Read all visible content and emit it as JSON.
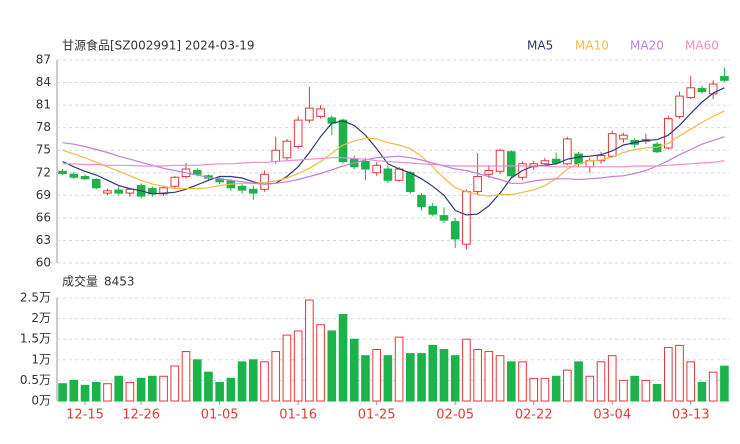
{
  "chart_data": {
    "type": "candlestick",
    "title": "甘源食品[SZ002991] 2024-03-19",
    "categories": [
      null,
      null,
      "12-15",
      null,
      null,
      null,
      null,
      "12-26",
      null,
      null,
      null,
      null,
      null,
      null,
      "01-05",
      null,
      null,
      null,
      null,
      null,
      null,
      "01-16",
      null,
      null,
      null,
      null,
      null,
      null,
      "01-25",
      null,
      null,
      null,
      null,
      null,
      null,
      "02-05",
      null,
      null,
      null,
      null,
      null,
      null,
      "02-22",
      null,
      null,
      null,
      null,
      null,
      null,
      "03-04",
      null,
      null,
      null,
      null,
      null,
      null,
      "03-13",
      null,
      null,
      null
    ],
    "open": [
      72.2,
      71.8,
      71.5,
      71.1,
      69.3,
      69.7,
      69.3,
      70.3,
      69.9,
      69.2,
      70.2,
      71.5,
      72.3,
      71.6,
      71.2,
      70.9,
      70.2,
      69.8,
      69.8,
      73.5,
      74.0,
      75.5,
      79.0,
      79.5,
      79.3,
      79.0,
      73.8,
      73.5,
      72.0,
      72.5,
      71.0,
      72.0,
      69.0,
      67.5,
      66.3,
      65.5,
      62.5,
      69.5,
      71.8,
      72.2,
      74.8,
      71.4,
      72.8,
      73.2,
      73.8,
      73.2,
      74.5,
      72.8,
      73.6,
      74.2,
      76.5,
      76.3,
      76.2,
      75.8,
      75.3,
      79.5,
      82.0,
      83.2,
      82.5,
      84.8
    ],
    "high": [
      72.5,
      72.1,
      71.8,
      71.3,
      69.9,
      70.2,
      70.0,
      70.6,
      70.2,
      70.3,
      71.6,
      73.3,
      72.6,
      71.8,
      71.5,
      71.2,
      70.5,
      70.3,
      72.3,
      76.8,
      76.5,
      79.5,
      83.4,
      81.0,
      79.6,
      79.2,
      74.3,
      74.0,
      73.4,
      73.0,
      72.8,
      72.2,
      69.3,
      68.0,
      67.4,
      66.0,
      69.8,
      74.6,
      73.0,
      75.2,
      75.0,
      73.5,
      73.6,
      74.0,
      74.7,
      76.8,
      74.8,
      74.0,
      74.8,
      77.6,
      77.3,
      76.6,
      77.2,
      76.1,
      79.6,
      82.8,
      84.9,
      83.6,
      84.3,
      86.0
    ],
    "low": [
      71.7,
      71.2,
      71.0,
      69.8,
      69.0,
      69.0,
      68.8,
      68.6,
      68.8,
      68.9,
      69.9,
      71.2,
      71.5,
      71.0,
      70.5,
      69.6,
      69.2,
      68.4,
      69.5,
      73.2,
      73.6,
      75.2,
      78.6,
      79.2,
      77.0,
      73.2,
      72.5,
      71.0,
      71.6,
      70.6,
      70.8,
      69.2,
      67.0,
      66.2,
      65.3,
      62.0,
      61.8,
      69.2,
      71.3,
      71.8,
      71.3,
      71.0,
      72.4,
      72.9,
      73.0,
      73.0,
      72.8,
      72.0,
      73.2,
      74.0,
      76.0,
      75.3,
      75.8,
      74.6,
      75.1,
      79.2,
      81.8,
      82.5,
      81.8,
      84.1
    ],
    "close": [
      71.9,
      71.4,
      71.2,
      70.0,
      69.6,
      69.3,
      69.8,
      68.9,
      69.2,
      70.0,
      71.4,
      72.5,
      71.8,
      71.3,
      70.8,
      70.0,
      69.7,
      69.3,
      71.8,
      75.0,
      76.2,
      79.0,
      80.6,
      80.5,
      78.6,
      73.5,
      72.8,
      72.5,
      73.0,
      71.0,
      72.5,
      69.5,
      67.5,
      66.5,
      65.7,
      63.2,
      69.5,
      71.5,
      72.3,
      75.0,
      71.6,
      73.2,
      73.2,
      73.6,
      73.3,
      76.5,
      73.2,
      73.6,
      74.3,
      77.2,
      77.0,
      75.8,
      76.4,
      74.8,
      79.2,
      82.2,
      83.3,
      82.8,
      83.8,
      84.3
    ],
    "up_color": "#e8343c",
    "down_color": "#1db24a",
    "series": [
      {
        "name": "MA5",
        "color": "#2e3a6e",
        "values": [
          73.5,
          72.8,
          72.2,
          71.7,
          71.0,
          70.3,
          69.9,
          69.6,
          69.2,
          69.3,
          69.4,
          69.8,
          70.4,
          71.0,
          71.5,
          71.5,
          71.3,
          70.8,
          70.5,
          70.6,
          71.5,
          72.8,
          74.7,
          76.8,
          78.6,
          78.9,
          78.3,
          77.0,
          75.2,
          73.2,
          72.5,
          72.0,
          71.2,
          70.2,
          69.0,
          67.0,
          66.4,
          66.5,
          67.6,
          69.3,
          71.3,
          72.3,
          72.9,
          73.0,
          73.2,
          73.8,
          74.1,
          74.2,
          74.4,
          74.9,
          75.7,
          76.0,
          76.3,
          76.4,
          77.0,
          78.3,
          79.9,
          81.4,
          82.6,
          83.3
        ]
      },
      {
        "name": "MA10",
        "color": "#f5b94a",
        "values": [
          75.0,
          74.5,
          74.0,
          73.4,
          72.8,
          72.2,
          71.6,
          71.0,
          70.5,
          70.2,
          69.9,
          69.9,
          69.9,
          70.0,
          70.3,
          70.5,
          70.6,
          70.6,
          70.7,
          70.9,
          71.3,
          71.9,
          72.6,
          73.5,
          74.6,
          75.7,
          76.2,
          76.6,
          76.5,
          76.0,
          75.7,
          75.2,
          74.2,
          72.8,
          71.3,
          70.0,
          69.5,
          69.1,
          68.9,
          69.1,
          69.1,
          69.4,
          69.7,
          70.3,
          71.2,
          72.5,
          73.2,
          73.6,
          73.7,
          74.1,
          74.7,
          75.1,
          75.3,
          75.4,
          75.9,
          76.9,
          77.8,
          78.7,
          79.5,
          80.2
        ]
      },
      {
        "name": "MA20",
        "color": "#bf7fe0",
        "values": [
          76.0,
          75.8,
          75.5,
          75.1,
          74.7,
          74.2,
          73.8,
          73.4,
          73.0,
          72.6,
          72.3,
          72.0,
          71.7,
          71.4,
          71.2,
          71.0,
          70.8,
          70.6,
          70.5,
          70.6,
          70.8,
          71.1,
          71.5,
          71.9,
          72.4,
          72.9,
          73.3,
          73.7,
          74.0,
          74.1,
          74.2,
          74.0,
          73.7,
          73.3,
          72.9,
          72.5,
          72.3,
          71.9,
          71.5,
          71.1,
          70.6,
          70.6,
          70.9,
          71.1,
          71.2,
          71.2,
          71.1,
          71.2,
          71.3,
          71.5,
          71.6,
          71.9,
          72.3,
          72.9,
          73.6,
          74.4,
          75.1,
          75.8,
          76.3,
          76.8
        ]
      },
      {
        "name": "MA60",
        "color": "#f08ccc",
        "values": [
          73.2,
          73.2,
          73.1,
          73.1,
          73.0,
          73.0,
          73.0,
          72.9,
          72.9,
          72.9,
          73.0,
          73.0,
          73.0,
          73.1,
          73.2,
          73.2,
          73.3,
          73.4,
          73.4,
          73.5,
          73.6,
          73.7,
          73.8,
          73.9,
          74.0,
          74.0,
          73.9,
          73.8,
          73.6,
          73.5,
          73.4,
          73.3,
          73.2,
          73.1,
          73.0,
          72.9,
          72.9,
          72.9,
          72.9,
          72.9,
          72.9,
          72.9,
          72.9,
          72.9,
          72.8,
          72.8,
          72.8,
          72.8,
          72.8,
          72.8,
          72.8,
          72.9,
          72.9,
          72.9,
          73.0,
          73.1,
          73.2,
          73.3,
          73.4,
          73.6
        ]
      }
    ],
    "ylim": [
      60,
      87
    ],
    "yticks": [
      60,
      63,
      66,
      69,
      72,
      75,
      78,
      81,
      84,
      87
    ],
    "grid": true,
    "volume": {
      "label": "成交量",
      "values": [
        4200,
        5000,
        3800,
        4500,
        4200,
        6000,
        4500,
        5500,
        6000,
        6000,
        8500,
        12000,
        10000,
        7000,
        4500,
        5500,
        9500,
        10000,
        9500,
        12000,
        16000,
        17000,
        24500,
        18500,
        17000,
        21000,
        15000,
        11000,
        12500,
        11000,
        15500,
        11500,
        11500,
        13500,
        12500,
        11000,
        15000,
        12500,
        12000,
        11000,
        9500,
        9500,
        5500,
        5500,
        6000,
        7500,
        9500,
        6000,
        9500,
        11000,
        5000,
        6000,
        5000,
        4000,
        13000,
        13500,
        9500,
        4500,
        7000,
        8453
      ],
      "ylim": [
        0,
        25000
      ],
      "yticks": [
        {
          "value": 0,
          "label": "0万"
        },
        {
          "value": 5000,
          "label": "0.5万"
        },
        {
          "value": 10000,
          "label": "1万"
        },
        {
          "value": 15000,
          "label": "1.5万"
        },
        {
          "value": 20000,
          "label": "2万"
        },
        {
          "value": 25000,
          "label": "2.5万"
        }
      ]
    }
  }
}
